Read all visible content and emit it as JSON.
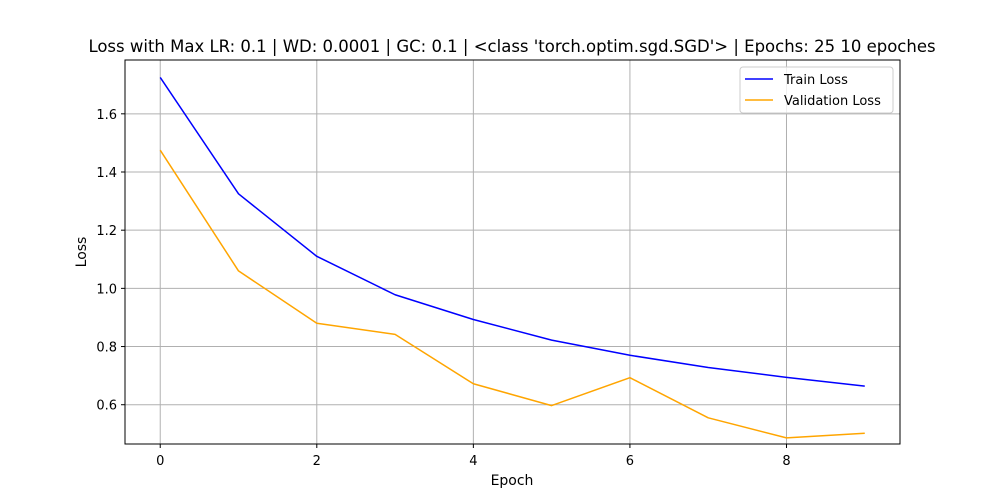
{
  "chart_data": {
    "type": "line",
    "title": "Loss with Max LR: 0.1 | WD: 0.0001 | GC: 0.1 | <class 'torch.optim.sgd.SGD'> | Epochs: 25 10 epoches",
    "xlabel": "Epoch",
    "ylabel": "Loss",
    "x": [
      0,
      1,
      2,
      3,
      4,
      5,
      6,
      7,
      8,
      9
    ],
    "xlim": [
      -0.45,
      9.45
    ],
    "ylim": [
      0.465,
      1.785
    ],
    "xticks": [
      0,
      2,
      4,
      6,
      8
    ],
    "yticks": [
      0.6,
      0.8,
      1.0,
      1.2,
      1.4,
      1.6
    ],
    "xtick_labels": [
      "0",
      "2",
      "4",
      "6",
      "8"
    ],
    "ytick_labels": [
      "0.6",
      "0.8",
      "1.0",
      "1.2",
      "1.4",
      "1.6"
    ],
    "grid": true,
    "legend_position": "top-right",
    "series": [
      {
        "name": "Train Loss",
        "color": "#0000ff",
        "values": [
          1.725,
          1.325,
          1.11,
          0.978,
          0.893,
          0.822,
          0.77,
          0.728,
          0.694,
          0.664
        ]
      },
      {
        "name": "Validation Loss",
        "color": "#ffa500",
        "values": [
          1.475,
          1.06,
          0.88,
          0.842,
          0.672,
          0.597,
          0.693,
          0.555,
          0.486,
          0.502
        ]
      }
    ]
  }
}
